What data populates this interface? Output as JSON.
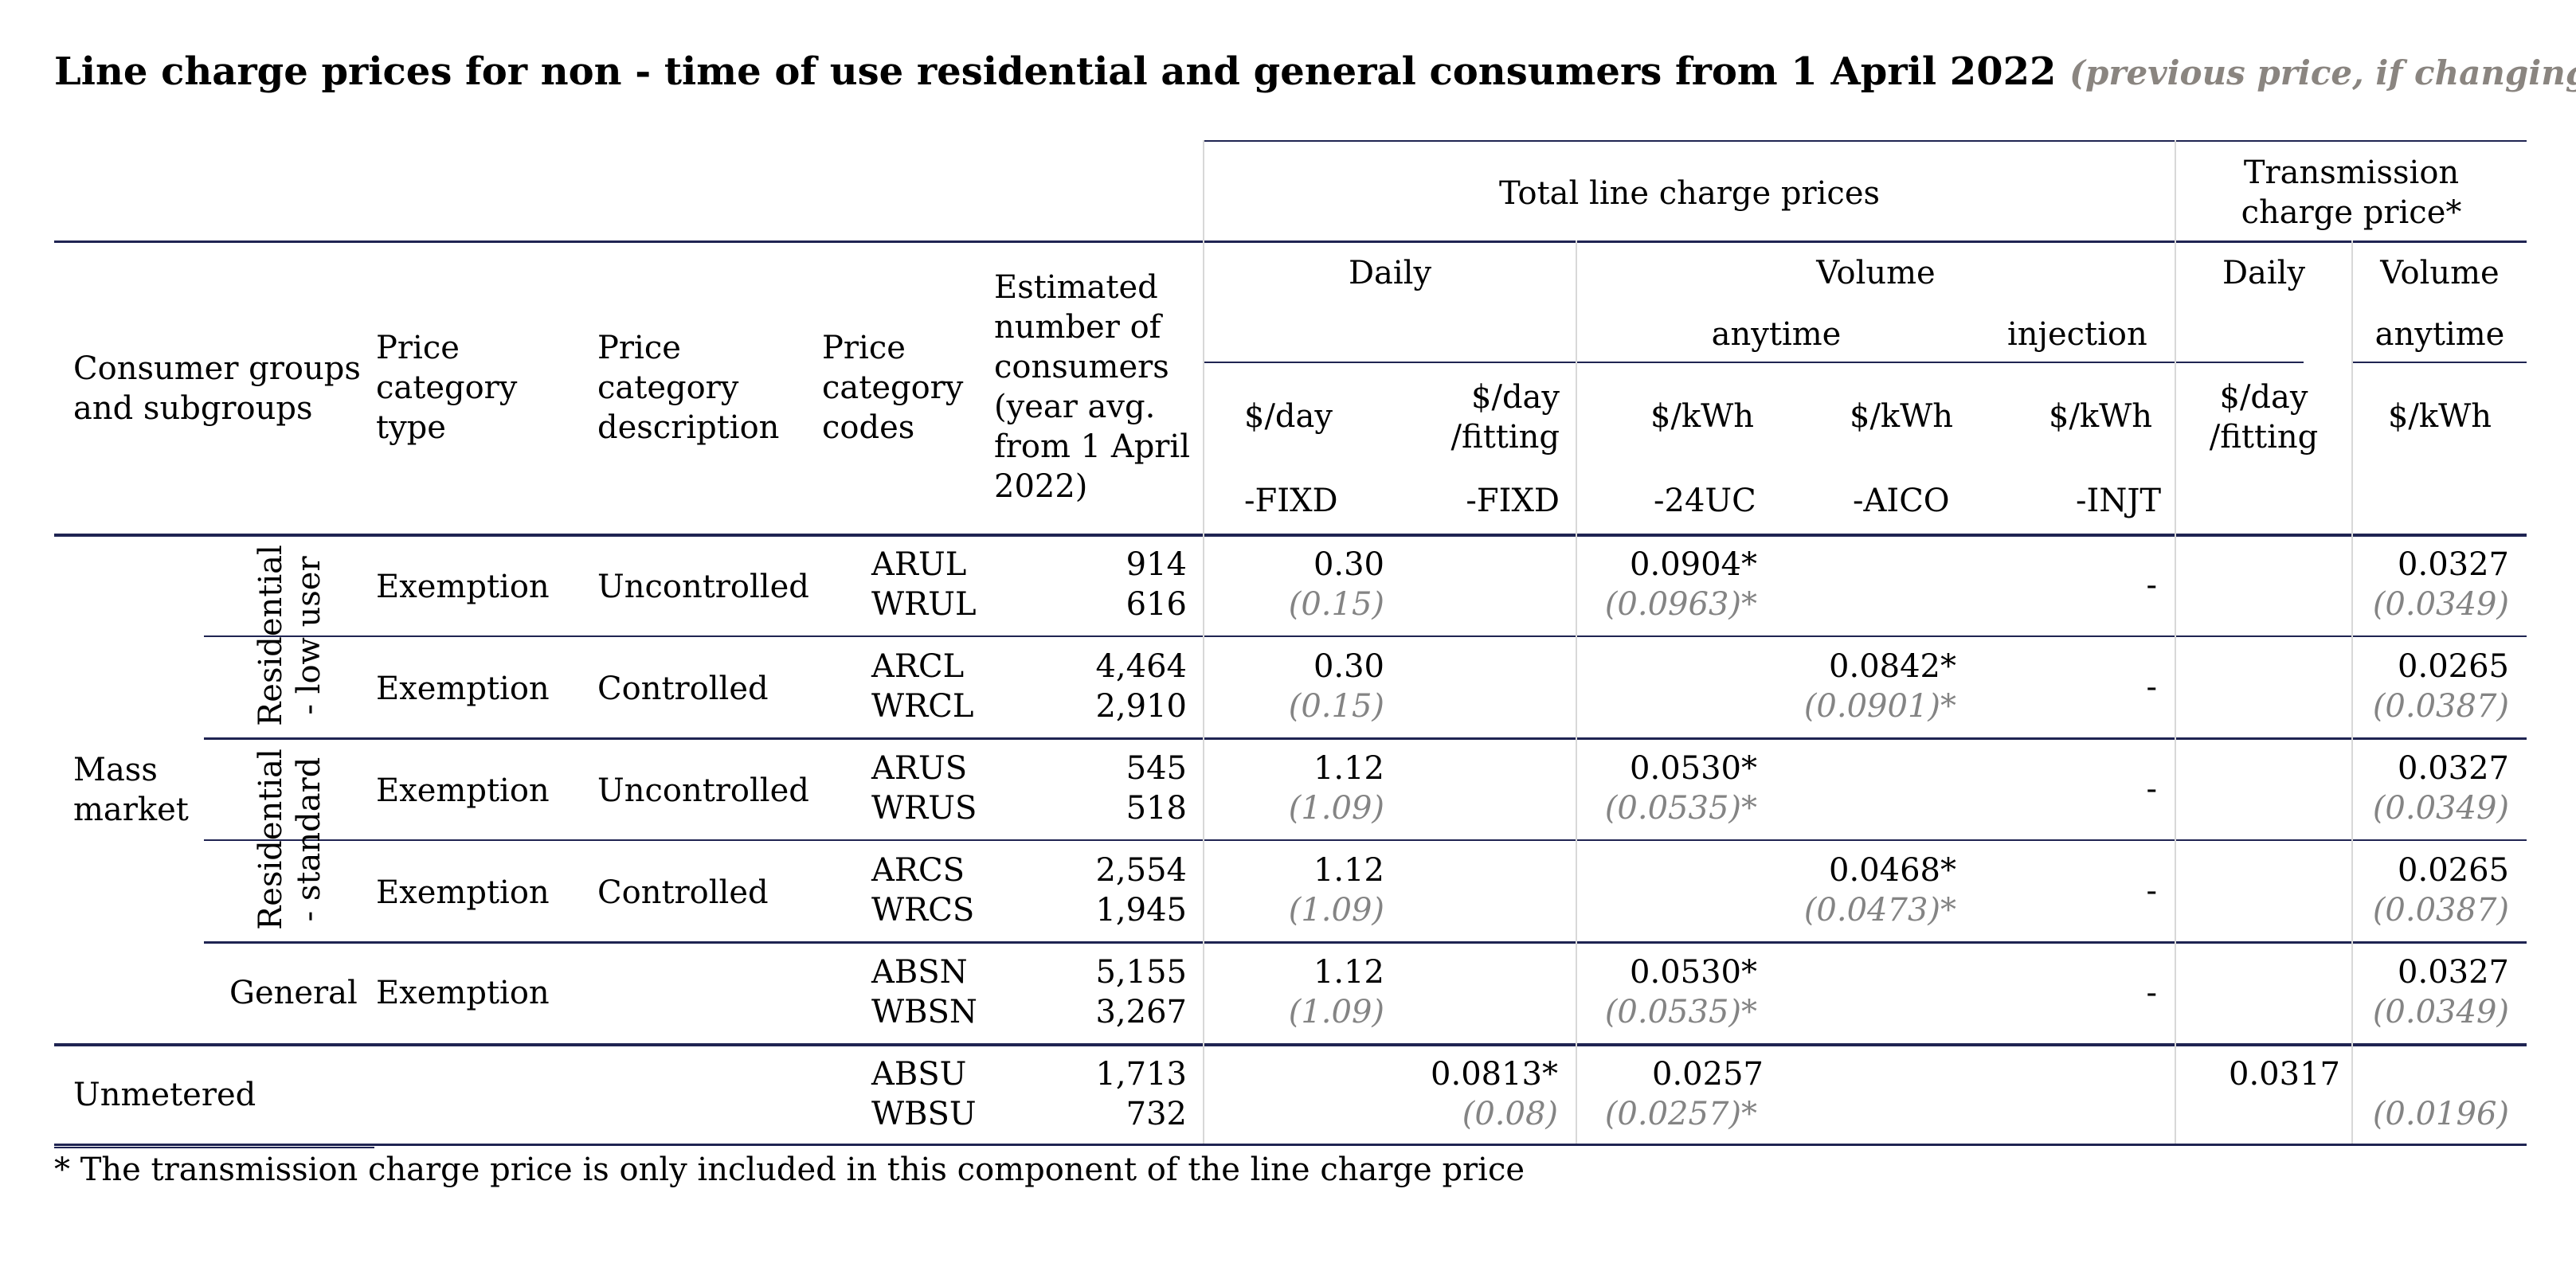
{
  "title": "Line charge prices for non - time of use residential and general consumers from 1 April 2022",
  "title_note": "(previous price, if changing)",
  "header": {
    "total_line_charge_prices": "Total line charge prices",
    "transmission_charge_price": "Transmission charge price*",
    "transmission_line1": "Transmission",
    "transmission_line2": "charge price*",
    "daily": "Daily",
    "volume": "Volume",
    "anytime": "anytime",
    "injection": "injection",
    "consumer_groups": [
      "Consumer groups",
      "and subgroups"
    ],
    "price_category_type": [
      "Price",
      "category",
      "type"
    ],
    "price_category_description": [
      "Price",
      "category",
      "description"
    ],
    "price_category_codes": [
      "Price",
      "category",
      "codes"
    ],
    "estimated_consumers": [
      "Estimated",
      "number of",
      "consumers",
      "(year avg.",
      "from 1 April",
      "2022)"
    ],
    "units": {
      "day": "$/day",
      "day_fitting": [
        "$/day",
        "/fitting"
      ],
      "kwh": "$/kWh"
    },
    "suffixes": {
      "fixd": "-FIXD",
      "24uc": "-24UC",
      "aico": "-AICO",
      "injt": "-INJT"
    }
  },
  "groups": {
    "mass_market": [
      "Mass",
      "market"
    ],
    "residential_low_user": [
      "Residential",
      "- low user"
    ],
    "residential_standard": [
      "Residential",
      "- standard"
    ],
    "general": "General",
    "unmetered": "Unmetered"
  },
  "rows": [
    {
      "type": "Exemption",
      "description": "Uncontrolled",
      "codes": [
        "ARUL",
        "WRUL"
      ],
      "consumers": [
        "914",
        "616"
      ],
      "daily": [
        "0.30",
        "(0.15)"
      ],
      "daily_fitting": [
        "",
        ""
      ],
      "v24uc": [
        "0.0904*",
        "(0.0963)*"
      ],
      "aico": [
        "",
        ""
      ],
      "injt": "-",
      "tx_daily": "",
      "tx_volume": [
        "0.0327",
        "(0.0349)"
      ]
    },
    {
      "type": "Exemption",
      "description": "Controlled",
      "codes": [
        "ARCL",
        "WRCL"
      ],
      "consumers": [
        "4,464",
        "2,910"
      ],
      "daily": [
        "0.30",
        "(0.15)"
      ],
      "daily_fitting": [
        "",
        ""
      ],
      "v24uc": [
        "",
        ""
      ],
      "aico": [
        "0.0842*",
        "(0.0901)*"
      ],
      "injt": "-",
      "tx_daily": "",
      "tx_volume": [
        "0.0265",
        "(0.0387)"
      ]
    },
    {
      "type": "Exemption",
      "description": "Uncontrolled",
      "codes": [
        "ARUS",
        "WRUS"
      ],
      "consumers": [
        "545",
        "518"
      ],
      "daily": [
        "1.12",
        "(1.09)"
      ],
      "daily_fitting": [
        "",
        ""
      ],
      "v24uc": [
        "0.0530*",
        "(0.0535)*"
      ],
      "aico": [
        "",
        ""
      ],
      "injt": "-",
      "tx_daily": "",
      "tx_volume": [
        "0.0327",
        "(0.0349)"
      ]
    },
    {
      "type": "Exemption",
      "description": "Controlled",
      "codes": [
        "ARCS",
        "WRCS"
      ],
      "consumers": [
        "2,554",
        "1,945"
      ],
      "daily": [
        "1.12",
        "(1.09)"
      ],
      "daily_fitting": [
        "",
        ""
      ],
      "v24uc": [
        "",
        ""
      ],
      "aico": [
        "0.0468*",
        "(0.0473)*"
      ],
      "injt": "-",
      "tx_daily": "",
      "tx_volume": [
        "0.0265",
        "(0.0387)"
      ]
    },
    {
      "type": "Exemption",
      "description": "",
      "codes": [
        "ABSN",
        "WBSN"
      ],
      "consumers": [
        "5,155",
        "3,267"
      ],
      "daily": [
        "1.12",
        "(1.09)"
      ],
      "daily_fitting": [
        "",
        ""
      ],
      "v24uc": [
        "0.0530*",
        "(0.0535)*"
      ],
      "aico": [
        "",
        ""
      ],
      "injt": "-",
      "tx_daily": "",
      "tx_volume": [
        "0.0327",
        "(0.0349)"
      ]
    },
    {
      "type": "",
      "description": "",
      "codes": [
        "ABSU",
        "WBSU"
      ],
      "consumers": [
        "1,713",
        "732"
      ],
      "daily": [
        "",
        ""
      ],
      "daily_fitting": [
        "0.0813*",
        "(0.08)"
      ],
      "v24uc": [
        "0.0257",
        "(0.0257)*"
      ],
      "aico": [
        "",
        ""
      ],
      "injt": "",
      "tx_daily": "0.0317",
      "tx_volume": [
        "",
        "(0.0196)"
      ]
    }
  ],
  "footnote": "* The transmission charge price is only included in this component of the line charge price"
}
